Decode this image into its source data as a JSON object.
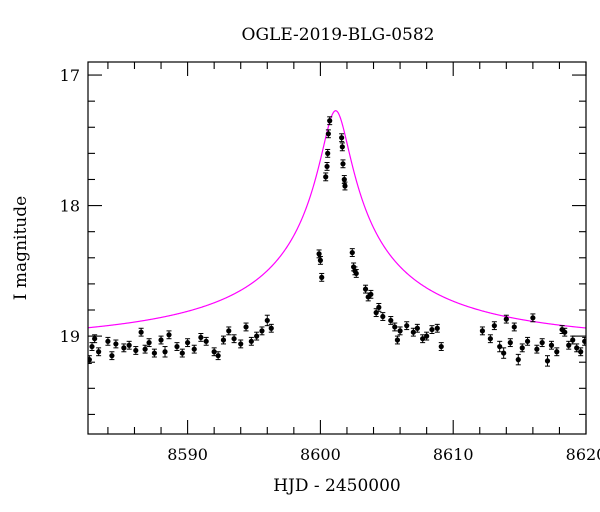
{
  "chart_data": {
    "type": "scatter",
    "title": "OGLE-2019-BLG-0582",
    "xlabel": "HJD - 2450000",
    "ylabel": "I magnitude",
    "xlim": [
      8582.5,
      8620
    ],
    "ylim": [
      19.75,
      16.9
    ],
    "y_inverted": true,
    "x_ticks": [
      8590,
      8600,
      8610,
      8620
    ],
    "x_tick_labels": [
      "8590",
      "8600",
      "8610",
      "8620"
    ],
    "y_ticks": [
      17,
      18,
      19
    ],
    "y_tick_labels": [
      "17",
      "18",
      "19"
    ],
    "grid": false,
    "colors": {
      "points": "#000000",
      "model": "#ff00ff"
    },
    "model": {
      "t0": 8601.15,
      "u0": 0.035,
      "tE": 28,
      "baseline": 19.05,
      "blend_fraction": 0.15
    },
    "points": [
      [
        8582.6,
        19.18,
        0.03
      ],
      [
        8582.8,
        19.08,
        0.03
      ],
      [
        8583.0,
        19.02,
        0.03
      ],
      [
        8583.3,
        19.12,
        0.03
      ],
      [
        8584.0,
        19.04,
        0.03
      ],
      [
        8584.3,
        19.15,
        0.03
      ],
      [
        8584.6,
        19.06,
        0.03
      ],
      [
        8585.2,
        19.09,
        0.03
      ],
      [
        8585.6,
        19.07,
        0.03
      ],
      [
        8586.1,
        19.11,
        0.03
      ],
      [
        8586.5,
        18.97,
        0.03
      ],
      [
        8586.8,
        19.1,
        0.03
      ],
      [
        8587.1,
        19.05,
        0.03
      ],
      [
        8587.5,
        19.13,
        0.03
      ],
      [
        8588.0,
        19.03,
        0.03
      ],
      [
        8588.3,
        19.12,
        0.04
      ],
      [
        8588.6,
        18.99,
        0.03
      ],
      [
        8589.2,
        19.08,
        0.03
      ],
      [
        8589.6,
        19.13,
        0.03
      ],
      [
        8590.0,
        19.05,
        0.03
      ],
      [
        8590.5,
        19.1,
        0.03
      ],
      [
        8591.0,
        19.01,
        0.03
      ],
      [
        8591.4,
        19.04,
        0.03
      ],
      [
        8592.0,
        19.12,
        0.03
      ],
      [
        8592.3,
        19.15,
        0.03
      ],
      [
        8592.7,
        19.03,
        0.03
      ],
      [
        8593.1,
        18.96,
        0.03
      ],
      [
        8593.5,
        19.02,
        0.03
      ],
      [
        8594.0,
        19.06,
        0.03
      ],
      [
        8594.4,
        18.93,
        0.03
      ],
      [
        8594.8,
        19.04,
        0.03
      ],
      [
        8595.2,
        19.0,
        0.03
      ],
      [
        8595.6,
        18.96,
        0.03
      ],
      [
        8596.0,
        18.88,
        0.04
      ],
      [
        8596.3,
        18.94,
        0.03
      ],
      [
        8599.9,
        18.37,
        0.03
      ],
      [
        8600.0,
        18.42,
        0.03
      ],
      [
        8600.1,
        18.55,
        0.03
      ],
      [
        8600.4,
        17.78,
        0.03
      ],
      [
        8600.5,
        17.7,
        0.03
      ],
      [
        8600.55,
        17.6,
        0.03
      ],
      [
        8600.6,
        17.45,
        0.03
      ],
      [
        8600.7,
        17.35,
        0.03
      ],
      [
        8601.6,
        17.48,
        0.03
      ],
      [
        8601.65,
        17.55,
        0.03
      ],
      [
        8601.7,
        17.68,
        0.03
      ],
      [
        8601.8,
        17.8,
        0.03
      ],
      [
        8601.85,
        17.85,
        0.03
      ],
      [
        8602.4,
        18.36,
        0.03
      ],
      [
        8602.5,
        18.47,
        0.03
      ],
      [
        8602.6,
        18.5,
        0.03
      ],
      [
        8602.7,
        18.52,
        0.03
      ],
      [
        8603.4,
        18.64,
        0.03
      ],
      [
        8603.6,
        18.7,
        0.03
      ],
      [
        8603.8,
        18.68,
        0.03
      ],
      [
        8604.2,
        18.82,
        0.03
      ],
      [
        8604.4,
        18.78,
        0.03
      ],
      [
        8604.7,
        18.85,
        0.03
      ],
      [
        8605.3,
        18.88,
        0.03
      ],
      [
        8605.6,
        18.93,
        0.03
      ],
      [
        8606.0,
        18.96,
        0.03
      ],
      [
        8605.8,
        19.03,
        0.03
      ],
      [
        8606.5,
        18.92,
        0.03
      ],
      [
        8607.0,
        18.97,
        0.03
      ],
      [
        8607.3,
        18.94,
        0.03
      ],
      [
        8607.7,
        19.02,
        0.03
      ],
      [
        8608.0,
        19.0,
        0.03
      ],
      [
        8608.4,
        18.95,
        0.03
      ],
      [
        8608.8,
        18.94,
        0.03
      ],
      [
        8609.1,
        19.08,
        0.03
      ],
      [
        8612.2,
        18.96,
        0.03
      ],
      [
        8612.8,
        19.02,
        0.03
      ],
      [
        8613.1,
        18.92,
        0.03
      ],
      [
        8613.5,
        19.08,
        0.04
      ],
      [
        8613.8,
        19.13,
        0.04
      ],
      [
        8614.0,
        18.87,
        0.03
      ],
      [
        8614.3,
        19.05,
        0.03
      ],
      [
        8614.6,
        18.93,
        0.03
      ],
      [
        8614.9,
        19.18,
        0.04
      ],
      [
        8615.2,
        19.09,
        0.03
      ],
      [
        8615.6,
        19.04,
        0.03
      ],
      [
        8616.0,
        18.86,
        0.03
      ],
      [
        8616.3,
        19.1,
        0.03
      ],
      [
        8616.7,
        19.05,
        0.03
      ],
      [
        8617.1,
        19.19,
        0.04
      ],
      [
        8617.4,
        19.07,
        0.03
      ],
      [
        8617.8,
        19.12,
        0.03
      ],
      [
        8618.2,
        18.95,
        0.03
      ],
      [
        8618.4,
        18.97,
        0.03
      ],
      [
        8618.7,
        19.07,
        0.03
      ],
      [
        8619.0,
        19.03,
        0.03
      ],
      [
        8619.3,
        19.09,
        0.03
      ],
      [
        8619.6,
        19.12,
        0.03
      ],
      [
        8619.9,
        19.04,
        0.03
      ]
    ]
  }
}
